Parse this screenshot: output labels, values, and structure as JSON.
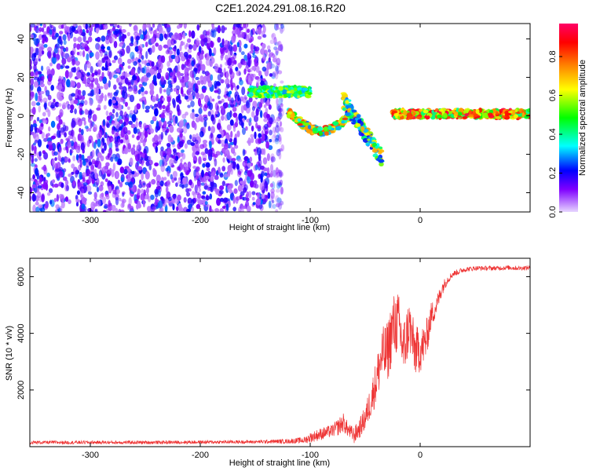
{
  "title": "C2E1.2024.291.08.16.R20",
  "colors": {
    "snr_line": "#ee3333",
    "low": "#e4ccff",
    "mid": "#7f00ff",
    "high": "#ff1a1a"
  },
  "chart_data": [
    {
      "type": "heatmap",
      "xlabel": "Height of straight line (km)",
      "ylabel": "Frequency (Hz)",
      "xlim": [
        -355,
        100
      ],
      "ylim": [
        -50,
        48
      ],
      "xticks": [
        -300,
        -200,
        -100,
        0
      ],
      "yticks": [
        -40,
        -20,
        0,
        20,
        40
      ],
      "grid": false,
      "colorbar": {
        "label": "Normalized spectral amplitude",
        "range": [
          0.0,
          0.97
        ],
        "ticks": [
          0.0,
          0.2,
          0.4,
          0.6,
          0.8
        ],
        "colormap": [
          "#e7d6ff",
          "#7f00ff",
          "#0000ff",
          "#00ffff",
          "#00ff00",
          "#ffff00",
          "#ff8000",
          "#ff0000",
          "#ff0066"
        ]
      },
      "regions": [
        {
          "x": [
            -355,
            -125
          ],
          "freq": [
            -50,
            48
          ],
          "amplitude": [
            0.05,
            0.3
          ],
          "description": "broadband noise"
        },
        {
          "x": [
            -155,
            -100
          ],
          "freq": [
            10,
            15
          ],
          "amplitude": [
            0.3,
            0.6
          ]
        },
        {
          "x": [
            -120,
            -60
          ],
          "freq": [
            -12,
            2
          ],
          "amplitude": [
            0.3,
            0.85
          ]
        },
        {
          "x": [
            -70,
            -35
          ],
          "freq": [
            -25,
            8
          ],
          "amplitude": [
            0.2,
            0.7
          ]
        },
        {
          "x": [
            -25,
            100
          ],
          "freq": [
            -1,
            3
          ],
          "amplitude": [
            0.4,
            0.95
          ]
        }
      ]
    },
    {
      "type": "line",
      "xlabel": "Height of straight line (km)",
      "ylabel": "SNR (10 * v/v)",
      "xlim": [
        -355,
        100
      ],
      "ylim": [
        0,
        6650
      ],
      "xticks": [
        -300,
        -200,
        -100,
        0
      ],
      "yticks": [
        2000,
        4000,
        6000
      ],
      "grid": false,
      "series": [
        {
          "x": [
            -355,
            -300,
            -250,
            -200,
            -150,
            -120,
            -105,
            -100,
            -90,
            -80,
            -75,
            -70,
            -65,
            -60,
            -55,
            -50,
            -45,
            -40,
            -35,
            -30,
            -25,
            -20,
            -15,
            -10,
            -5,
            0,
            5,
            10,
            15,
            20,
            25,
            30,
            40,
            50,
            60,
            70,
            80,
            90,
            100
          ],
          "values": [
            150,
            150,
            150,
            160,
            170,
            190,
            230,
            320,
            450,
            560,
            680,
            850,
            560,
            400,
            650,
            1000,
            1600,
            2300,
            3200,
            3300,
            4200,
            4400,
            3400,
            4300,
            3400,
            3400,
            3700,
            4600,
            5000,
            5600,
            5900,
            6100,
            6250,
            6300,
            6300,
            6300,
            6320,
            6300,
            6320
          ],
          "jitter": [
            60,
            60,
            60,
            60,
            60,
            80,
            120,
            180,
            220,
            220,
            300,
            350,
            250,
            300,
            350,
            450,
            600,
            800,
            1000,
            1100,
            1200,
            1100,
            1100,
            1000,
            900,
            800,
            700,
            500,
            350,
            250,
            150,
            110,
            90,
            80,
            80,
            80,
            80,
            80,
            80
          ]
        }
      ]
    }
  ]
}
